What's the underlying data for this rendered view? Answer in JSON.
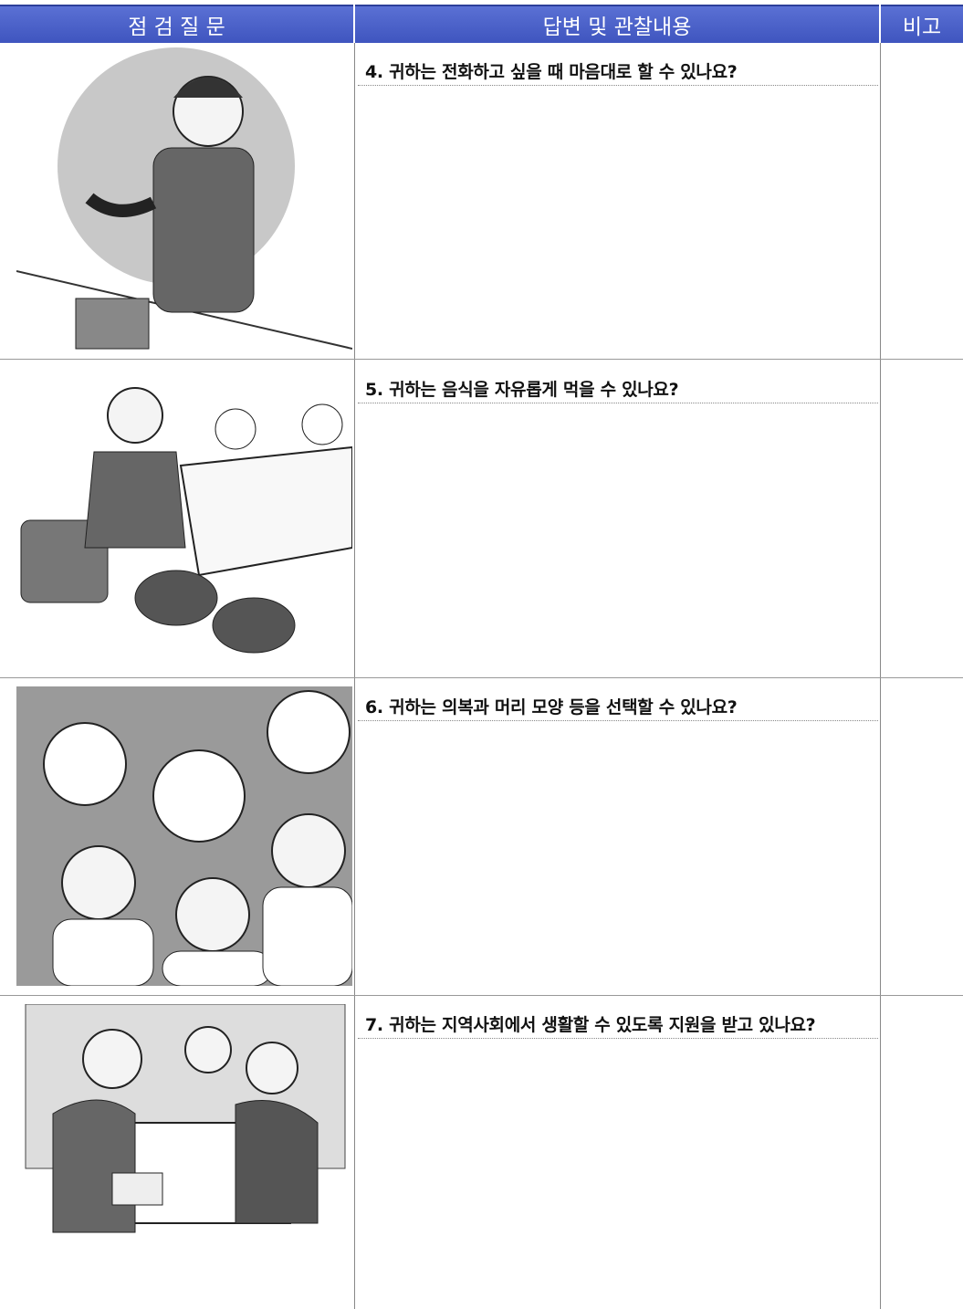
{
  "header": {
    "columns": [
      "점 검 질 문",
      "답변 및 관찰내용",
      "비고"
    ]
  },
  "table": {
    "rows": [
      {
        "question": "4. 귀하는 전화하고 싶을 때 마음대로 할 수 있나요?"
      },
      {
        "question": "5. 귀하는 음식을 자유롭게 먹을 수 있나요?"
      },
      {
        "question": "6. 귀하는 의복과 머리 모양 등을 선택할 수 있나요?"
      },
      {
        "question": "7. 귀하는 지역사회에서 생활할 수 있도록 지원을 받고 있나요?"
      }
    ]
  }
}
